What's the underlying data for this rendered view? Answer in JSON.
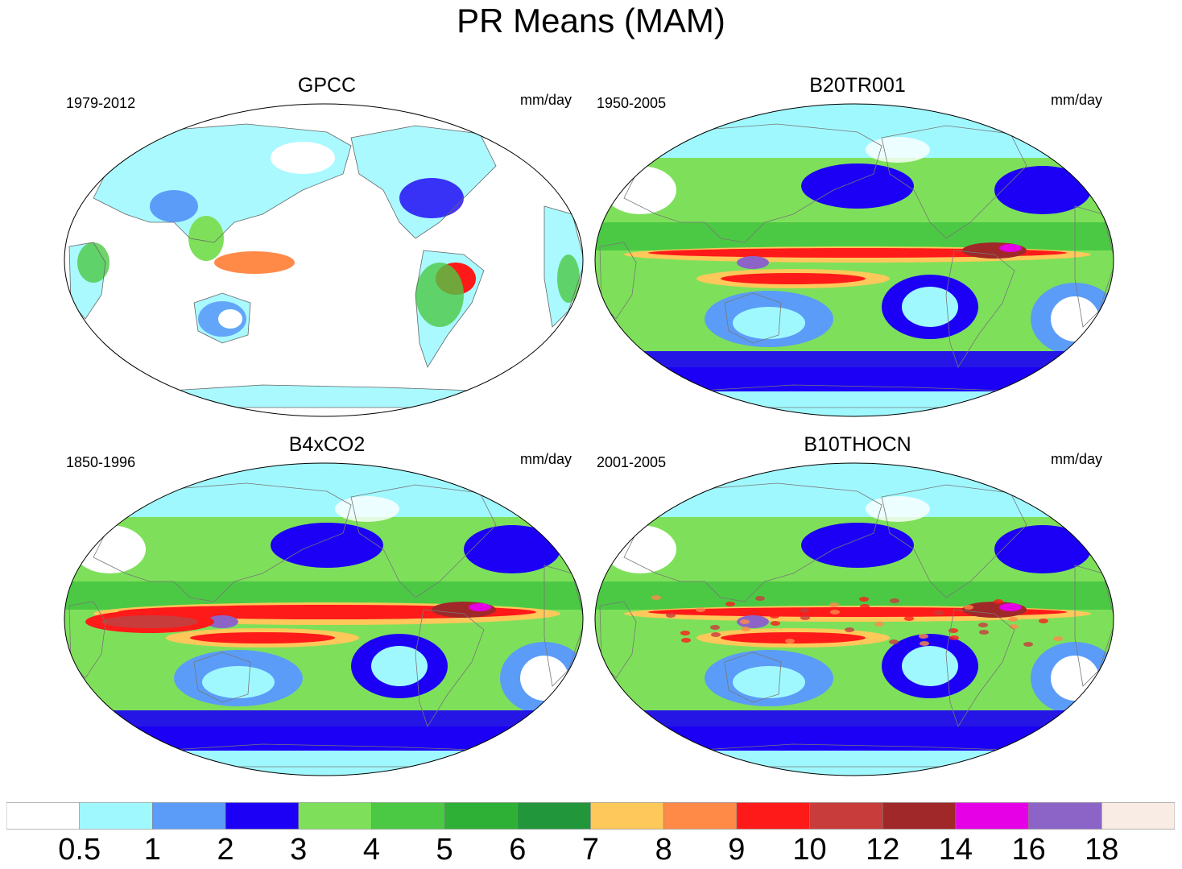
{
  "title": "PR Means (MAM)",
  "panels": [
    {
      "title": "GPCC",
      "period": "1979-2012",
      "units": "mm/day",
      "kind": "obs"
    },
    {
      "title": "B20TR001",
      "period": "1950-2005",
      "units": "mm/day",
      "kind": "model"
    },
    {
      "title": "B4xCO2",
      "period": "1850-1996",
      "units": "mm/day",
      "kind": "model-strong"
    },
    {
      "title": "B10THOCN",
      "period": "2001-2005",
      "units": "mm/day",
      "kind": "model-noisy"
    }
  ],
  "colorbar": {
    "labels": [
      "0.5",
      "1",
      "2",
      "3",
      "4",
      "5",
      "6",
      "7",
      "8",
      "9",
      "10",
      "12",
      "14",
      "16",
      "18"
    ],
    "colors": [
      "#ffffff",
      "#a0f8ff",
      "#5b9cf8",
      "#1c00f5",
      "#7ee05a",
      "#4cc944",
      "#2eaf36",
      "#22963a",
      "#ffc85a",
      "#ff8a48",
      "#ff1a1a",
      "#c83c3c",
      "#a02828",
      "#e600e6",
      "#8c64c8",
      "#f8ece4"
    ]
  }
}
